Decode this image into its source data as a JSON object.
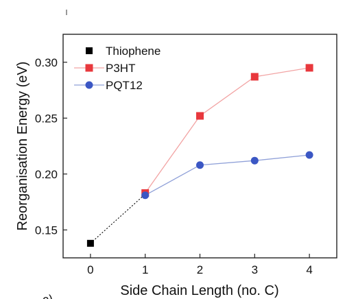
{
  "panel_label": "c)",
  "chart_data": {
    "type": "line",
    "xlabel": "Side Chain Length (no. C)",
    "ylabel": "Reorganisation Energy (eV)",
    "xlim": [
      -0.5,
      4.5
    ],
    "ylim": [
      0.125,
      0.325
    ],
    "xticks": [
      0,
      1,
      2,
      3,
      4
    ],
    "yticks": [
      0.15,
      0.2,
      0.25,
      0.3
    ],
    "grid": false,
    "legend_position": "top-left",
    "series": [
      {
        "name": "Thiophene",
        "marker": "square",
        "color": "#000000",
        "line": "none",
        "x": [
          0
        ],
        "y": [
          0.138
        ]
      },
      {
        "name": "P3HT",
        "marker": "square",
        "color": "#e8383d",
        "line_color": "#f2a3a3",
        "x": [
          1,
          2,
          3,
          4
        ],
        "y": [
          0.183,
          0.252,
          0.287,
          0.295
        ]
      },
      {
        "name": "PQT12",
        "marker": "circle",
        "color": "#3b57c4",
        "line_color": "#8fa0d8",
        "x": [
          1,
          2,
          3,
          4
        ],
        "y": [
          0.181,
          0.208,
          0.212,
          0.217
        ]
      }
    ],
    "connector": {
      "style": "dotted",
      "color": "#000000",
      "x": [
        0,
        1
      ],
      "y": [
        0.138,
        0.182
      ]
    }
  }
}
